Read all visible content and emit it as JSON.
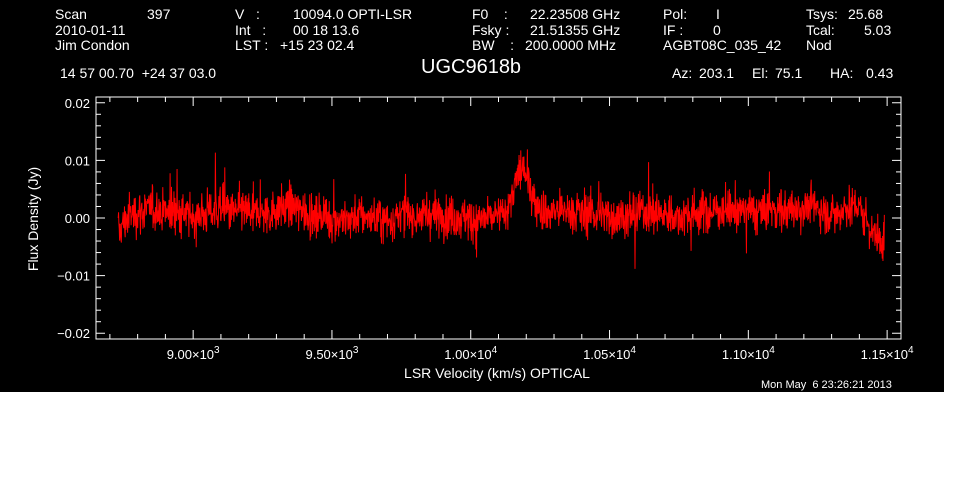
{
  "header": {
    "scan_label": "Scan",
    "scan_value": "397",
    "date": "2010-01-11",
    "observer": "Jim Condon",
    "v_label": "V   :",
    "v_value": "10094.0 OPTI-LSR",
    "int_label": "Int   :",
    "int_value": "00 18 13.6",
    "lst_label": "LST :",
    "lst_value": "+15 23 02.4",
    "f0_label": "F0    :",
    "f0_value": "22.23508 GHz",
    "fsky_label": "Fsky :",
    "fsky_value": "21.51355 GHz",
    "bw_label": "BW    :",
    "bw_value": "200.0000 MHz",
    "pol_label": "Pol:",
    "pol_value": "I",
    "if_label": "IF :",
    "if_value": "0",
    "project": "AGBT08C_035_42",
    "tsys_label": "Tsys:",
    "tsys_value": "25.68",
    "tcal_label": "Tcal:",
    "tcal_value": "5.03",
    "mode": "Nod",
    "coords": "14 57 00.70  +24 37 03.0",
    "source": "UGC9618b",
    "az_label": "Az:",
    "az_value": "203.1",
    "el_label": "El:",
    "el_value": "75.1",
    "ha_label": "HA:",
    "ha_value": "0.43",
    "timestamp": "Mon May  6 23:26:21 2013"
  },
  "colors": {
    "background": "#000000",
    "axes": "#ffffff",
    "spectrum": "#ff0000"
  },
  "chart_data": {
    "type": "line",
    "title": "UGC9618b",
    "xlabel": "LSR Velocity (km/s) OPTICAL",
    "ylabel": "Flux Density (Jy)",
    "xlim": [
      8650,
      11550
    ],
    "ylim": [
      -0.021,
      0.021
    ],
    "x_ticks": [
      {
        "value": 9000,
        "mant": "9.00×10",
        "exp": "3"
      },
      {
        "value": 9500,
        "mant": "9.50×10",
        "exp": "3"
      },
      {
        "value": 10000,
        "mant": "1.00×10",
        "exp": "4"
      },
      {
        "value": 10500,
        "mant": "1.05×10",
        "exp": "4"
      },
      {
        "value": 11000,
        "mant": "1.10×10",
        "exp": "4"
      },
      {
        "value": 11500,
        "mant": "1.15×10",
        "exp": "4"
      }
    ],
    "y_ticks": [
      {
        "value": 0.02,
        "label": "0.02"
      },
      {
        "value": 0.01,
        "label": "0.01"
      },
      {
        "value": 0.0,
        "label": "0.00"
      },
      {
        "value": -0.01,
        "label": "−0.01"
      },
      {
        "value": -0.02,
        "label": "−0.02"
      }
    ],
    "grid": false,
    "series": [
      {
        "x": [
          8730,
          8770,
          8800,
          8850,
          8900,
          8950,
          9000,
          9050,
          9100,
          9150,
          9200,
          9250,
          9300,
          9350,
          9400,
          9450,
          9500,
          9550,
          9600,
          9650,
          9700,
          9750,
          9800,
          9850,
          9900,
          9950,
          10000,
          10050,
          10100,
          10125,
          10150,
          10175,
          10200,
          10225,
          10250,
          10275,
          10300,
          10350,
          10400,
          10450,
          10500,
          10550,
          10600,
          10650,
          10700,
          10750,
          10800,
          10850,
          10900,
          10950,
          11000,
          11050,
          11100,
          11150,
          11200,
          11250,
          11300,
          11350,
          11400,
          11450,
          11470,
          11490
        ],
        "y": [
          -0.0025,
          0.0005,
          0.001,
          0.0015,
          0.0012,
          0.0008,
          0.0002,
          0.001,
          0.0015,
          0.001,
          0.0012,
          0.0005,
          0.0015,
          0.0022,
          0.001,
          0.0002,
          0.0,
          -0.0003,
          0.0004,
          0.0,
          -0.0005,
          0.0004,
          0.0005,
          0.0003,
          0.0006,
          0.0002,
          -0.0002,
          0.0,
          0.0002,
          0.001,
          0.004,
          0.0085,
          0.0075,
          0.0035,
          0.0018,
          0.0008,
          0.0012,
          0.0014,
          0.0008,
          0.0009,
          0.0002,
          0.0004,
          0.0009,
          0.0011,
          0.0005,
          0.0003,
          0.0012,
          0.0008,
          0.0014,
          0.0016,
          0.0012,
          0.001,
          0.0016,
          0.0012,
          0.002,
          0.0018,
          0.0003,
          0.002,
          0.0018,
          -0.0025,
          -0.004,
          -0.0035
        ]
      }
    ],
    "noise_rms": 0.0022
  }
}
